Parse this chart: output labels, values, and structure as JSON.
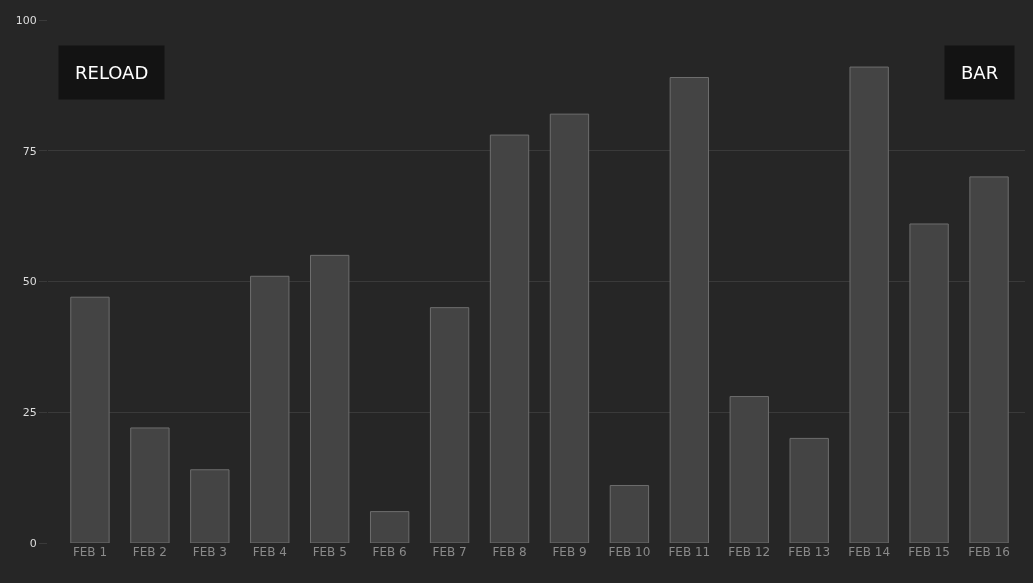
{
  "chart_data": {
    "type": "bar",
    "categories": [
      "FEB 1",
      "FEB 2",
      "FEB 3",
      "FEB 4",
      "FEB 5",
      "FEB 6",
      "FEB 7",
      "FEB 8",
      "FEB 9",
      "FEB 10",
      "FEB 11",
      "FEB 12",
      "FEB 13",
      "FEB 14",
      "FEB 15",
      "FEB 16"
    ],
    "values": [
      47,
      22,
      14,
      51,
      55,
      6,
      45,
      78,
      82,
      11,
      89,
      28,
      20,
      91,
      61,
      70
    ],
    "color": "#444444",
    "ylim": [
      0,
      100
    ],
    "yticks": [
      0,
      25,
      50,
      75,
      100
    ],
    "grid": "y",
    "annotations": [
      "RELOAD",
      "BAR"
    ]
  }
}
